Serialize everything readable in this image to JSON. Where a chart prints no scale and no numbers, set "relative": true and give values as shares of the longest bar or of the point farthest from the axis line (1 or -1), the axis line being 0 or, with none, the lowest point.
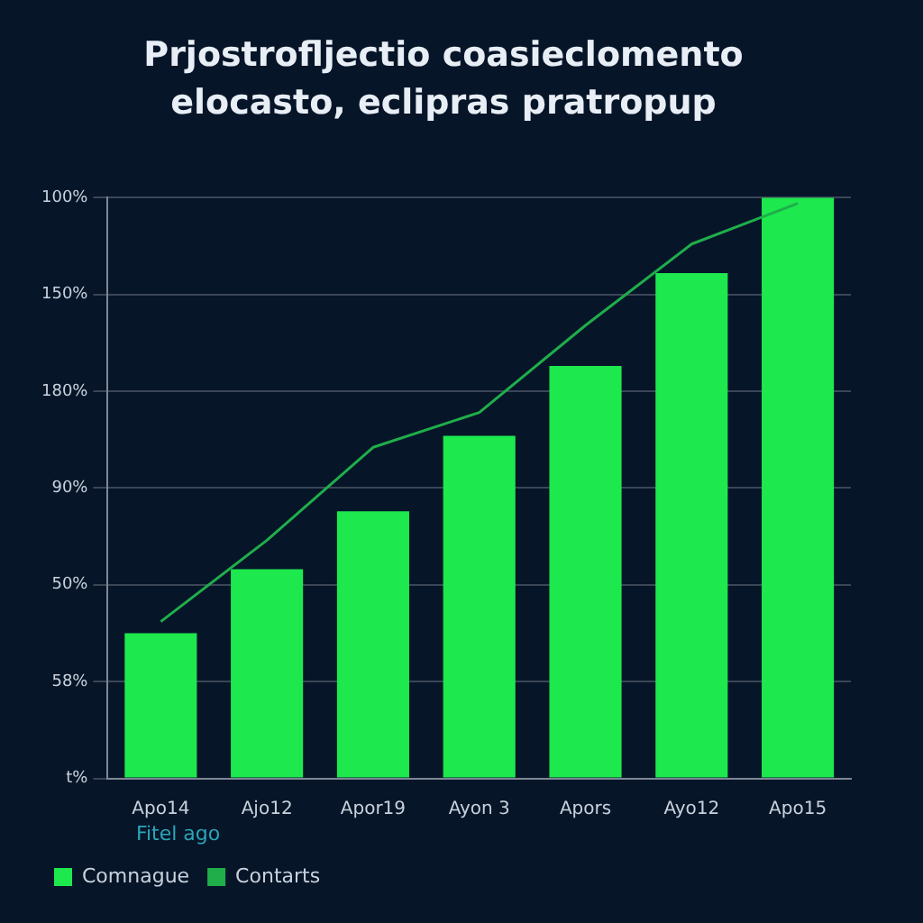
{
  "chart_data": {
    "type": "bar",
    "title": "Prjostrofljectio coasieclomento",
    "subtitle": "elocasto, eclipras pratropup",
    "categories": [
      "Apo14",
      "Ajo12",
      "Apor19",
      "Ayon 3",
      "Apors",
      "Ayo12",
      "Apo15"
    ],
    "relative": true,
    "series": [
      {
        "name": "Comnague",
        "color": "#1de94f",
        "values": [
          0.25,
          0.36,
          0.46,
          0.59,
          0.71,
          0.87,
          1
        ]
      },
      {
        "name": "Contarts",
        "type": "line",
        "color": "#1fae4a",
        "values": [
          0.27,
          0.41,
          0.57,
          0.63,
          0.78,
          0.92,
          0.99
        ]
      }
    ],
    "annotations": [
      "100%",
      "150%",
      "180%",
      "90%",
      "50%",
      "58%",
      "t%"
    ],
    "grid": "y",
    "legend": "bottom left",
    "legend_title": "Fitel ago",
    "marker": "none",
    "line_style": "solid"
  }
}
